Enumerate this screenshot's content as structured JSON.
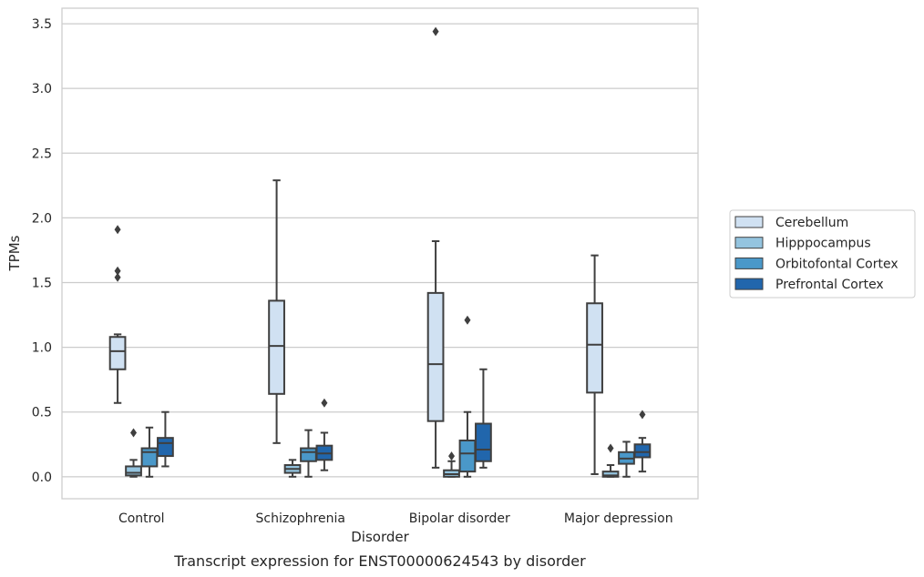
{
  "chart_data": {
    "type": "box",
    "title": "",
    "caption": "Transcript expression for ENST00000624543 by disorder",
    "xlabel": "Disorder",
    "ylabel": "TPMs",
    "ylim": [
      -0.17,
      3.62
    ],
    "yticks": [
      "0.0",
      "0.5",
      "1.0",
      "1.5",
      "2.0",
      "2.5",
      "3.0",
      "3.5"
    ],
    "ytick_values": [
      0,
      0.5,
      1.0,
      1.5,
      2.0,
      2.5,
      3.0,
      3.5
    ],
    "grid": true,
    "legend_position": "right",
    "categories": [
      "Control",
      "Schizophrenia",
      "Bipolar disorder",
      "Major depression"
    ],
    "series": [
      {
        "name": "Cerebellum",
        "color": "#d0e1f2",
        "boxes": [
          {
            "low": 0.57,
            "q1": 0.83,
            "median": 0.97,
            "q3": 1.08,
            "high": 1.1,
            "outliers": [
              1.91,
              1.59,
              1.54
            ]
          },
          {
            "low": 0.26,
            "q1": 0.64,
            "median": 1.01,
            "q3": 1.36,
            "high": 2.29,
            "outliers": []
          },
          {
            "low": 0.07,
            "q1": 0.43,
            "median": 0.87,
            "q3": 1.42,
            "high": 1.82,
            "outliers": [
              3.44
            ]
          },
          {
            "low": 0.02,
            "q1": 0.65,
            "median": 1.02,
            "q3": 1.34,
            "high": 1.71,
            "outliers": []
          }
        ]
      },
      {
        "name": "Hipppocampus",
        "color": "#94c4df",
        "boxes": [
          {
            "low": 0.0,
            "q1": 0.01,
            "median": 0.03,
            "q3": 0.08,
            "high": 0.13,
            "outliers": [
              0.34
            ]
          },
          {
            "low": 0.0,
            "q1": 0.03,
            "median": 0.06,
            "q3": 0.09,
            "high": 0.13,
            "outliers": []
          },
          {
            "low": 0.0,
            "q1": 0.0,
            "median": 0.02,
            "q3": 0.05,
            "high": 0.12,
            "outliers": [
              0.16
            ]
          },
          {
            "low": 0.0,
            "q1": 0.0,
            "median": 0.01,
            "q3": 0.04,
            "high": 0.09,
            "outliers": [
              0.22
            ]
          }
        ]
      },
      {
        "name": "Orbitofontal Cortex",
        "color": "#4a98c9",
        "boxes": [
          {
            "low": 0.0,
            "q1": 0.08,
            "median": 0.19,
            "q3": 0.22,
            "high": 0.38,
            "outliers": []
          },
          {
            "low": 0.0,
            "q1": 0.12,
            "median": 0.19,
            "q3": 0.22,
            "high": 0.36,
            "outliers": []
          },
          {
            "low": 0.0,
            "q1": 0.04,
            "median": 0.18,
            "q3": 0.28,
            "high": 0.5,
            "outliers": [
              1.21
            ]
          },
          {
            "low": 0.0,
            "q1": 0.1,
            "median": 0.14,
            "q3": 0.19,
            "high": 0.27,
            "outliers": []
          }
        ]
      },
      {
        "name": "Prefrontal Cortex",
        "color": "#2166ac",
        "boxes": [
          {
            "low": 0.08,
            "q1": 0.16,
            "median": 0.26,
            "q3": 0.3,
            "high": 0.5,
            "outliers": []
          },
          {
            "low": 0.05,
            "q1": 0.13,
            "median": 0.18,
            "q3": 0.24,
            "high": 0.34,
            "outliers": [
              0.57
            ]
          },
          {
            "low": 0.07,
            "q1": 0.12,
            "median": 0.21,
            "q3": 0.41,
            "high": 0.83,
            "outliers": []
          },
          {
            "low": 0.04,
            "q1": 0.15,
            "median": 0.19,
            "q3": 0.25,
            "high": 0.3,
            "outliers": [
              0.48
            ]
          }
        ]
      }
    ]
  }
}
